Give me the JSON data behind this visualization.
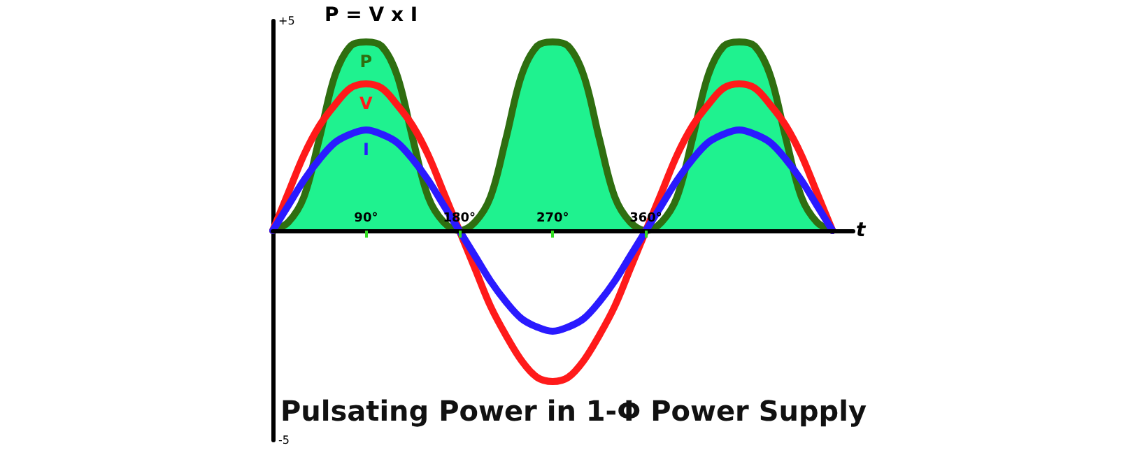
{
  "chart_data": {
    "type": "line",
    "title": "Pulsating Power in 1-Φ Power Supply",
    "annotations": [
      "P = V x I"
    ],
    "xlabel": "t",
    "x": [
      0,
      15,
      30,
      45,
      60,
      75,
      90,
      105,
      120,
      135,
      150,
      165,
      180,
      195,
      210,
      225,
      240,
      255,
      270,
      285,
      300,
      315,
      330,
      345,
      360,
      375,
      390,
      405,
      420,
      435,
      450,
      465,
      480,
      495,
      510,
      525,
      540
    ],
    "xlim": [
      0,
      560
    ],
    "xticks": [
      {
        "value": 90,
        "label": "90°"
      },
      {
        "value": 180,
        "label": "180°"
      },
      {
        "value": 270,
        "label": "270°"
      },
      {
        "value": 360,
        "label": "360°"
      }
    ],
    "ylim": [
      -5,
      5
    ],
    "yticks": [
      {
        "value": 5,
        "label": "+5"
      },
      {
        "value": -5,
        "label": "-5"
      }
    ],
    "series": [
      {
        "name": "P",
        "type": "area",
        "color": "#2f6e10",
        "values": [
          0,
          0.2,
          0.8,
          2.2,
          3.7,
          4.4,
          4.5,
          4.4,
          3.7,
          2.2,
          0.8,
          0.2,
          0,
          0.2,
          0.8,
          2.2,
          3.7,
          4.4,
          4.5,
          4.4,
          3.7,
          2.2,
          0.8,
          0.2,
          0,
          0.2,
          0.8,
          2.2,
          3.7,
          4.4,
          4.5,
          4.4,
          3.7,
          2.2,
          0.8,
          0.2,
          0
        ]
      },
      {
        "name": "V",
        "color": "#ff1a1a",
        "values": [
          0,
          0.9,
          1.8,
          2.5,
          3.0,
          3.4,
          3.5,
          3.4,
          3.0,
          2.5,
          1.8,
          0.9,
          0,
          -0.9,
          -1.8,
          -2.5,
          -3.1,
          -3.5,
          -3.6,
          -3.5,
          -3.1,
          -2.5,
          -1.8,
          -0.9,
          0,
          0.9,
          1.8,
          2.5,
          3.0,
          3.4,
          3.5,
          3.4,
          3.0,
          2.5,
          1.8,
          0.9,
          0
        ]
      },
      {
        "name": "I",
        "color": "#2a1aff",
        "values": [
          0,
          0.6,
          1.2,
          1.7,
          2.1,
          2.3,
          2.4,
          2.3,
          2.1,
          1.7,
          1.2,
          0.6,
          0,
          -0.6,
          -1.2,
          -1.7,
          -2.1,
          -2.3,
          -2.4,
          -2.3,
          -2.1,
          -1.7,
          -1.2,
          -0.6,
          0,
          0.6,
          1.2,
          1.7,
          2.1,
          2.3,
          2.4,
          2.3,
          2.1,
          1.7,
          1.2,
          0.6,
          0
        ]
      }
    ],
    "grid": false,
    "marker": "none"
  }
}
